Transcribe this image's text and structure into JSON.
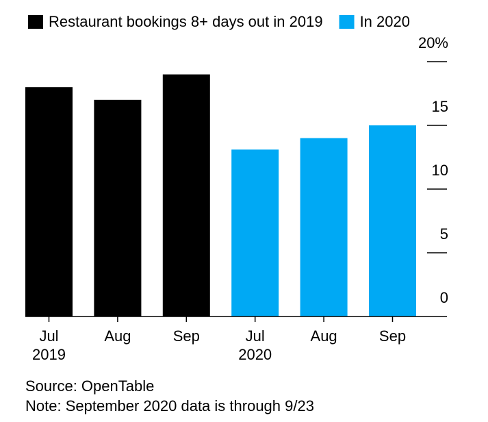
{
  "chart_data": {
    "type": "bar",
    "categories": [
      [
        "Jul",
        "2019"
      ],
      [
        "Aug"
      ],
      [
        "Sep"
      ],
      [
        "Jul",
        "2020"
      ],
      [
        "Aug"
      ],
      [
        "Sep"
      ]
    ],
    "series": [
      {
        "name": "Restaurant bookings 8+ days out in 2019",
        "color": "#000000",
        "values": [
          18,
          17,
          19,
          null,
          null,
          null
        ]
      },
      {
        "name": "In 2020",
        "color": "#00a9f4",
        "values": [
          null,
          null,
          null,
          13.1,
          14,
          15
        ]
      }
    ],
    "ylim": [
      0,
      20
    ],
    "yticks": [
      0,
      5,
      10,
      15,
      {
        "value": 20,
        "label": "20%"
      }
    ],
    "source": "Source: OpenTable",
    "note": "Note: September 2020 data is through 9/23"
  }
}
